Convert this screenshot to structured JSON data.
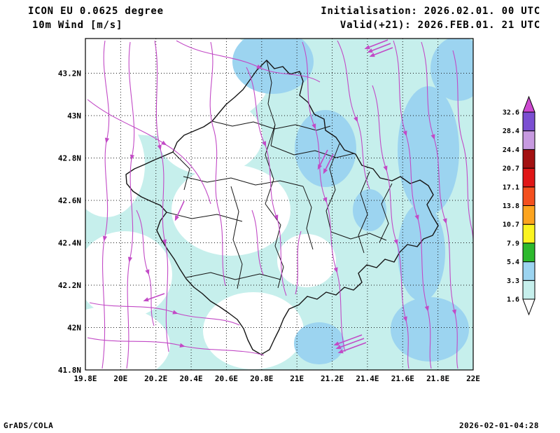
{
  "header": {
    "model": "ICON EU 0.0625 degree",
    "field": "10m Wind [m/s]",
    "initialisation": "Initialisation: 2026.02.01. 00 UTC",
    "valid": "Valid(+21): 2026.FEB.01. 21 UTC"
  },
  "footer": {
    "credit": "GrADS/COLA",
    "timestamp": "2026-02-01-04:28"
  },
  "chart_data": {
    "type": "heatmap",
    "title": "ICON EU 0.0625 degree - 10m Wind [m/s]",
    "projection": "latlon",
    "region_hint": "Kosovo and surroundings with wind streamlines",
    "lon_range": [
      19.8,
      22.0
    ],
    "lat_range": [
      41.8,
      43.3636
    ],
    "grid": "dotted",
    "lon_ticks": [
      {
        "v": 19.8,
        "label": "19.8E"
      },
      {
        "v": 20.0,
        "label": "20E"
      },
      {
        "v": 20.2,
        "label": "20.2E"
      },
      {
        "v": 20.4,
        "label": "20.4E"
      },
      {
        "v": 20.6,
        "label": "20.6E"
      },
      {
        "v": 20.8,
        "label": "20.8E"
      },
      {
        "v": 21.0,
        "label": "21E"
      },
      {
        "v": 21.2,
        "label": "21.2E"
      },
      {
        "v": 21.4,
        "label": "21.4E"
      },
      {
        "v": 21.6,
        "label": "21.6E"
      },
      {
        "v": 21.8,
        "label": "21.8E"
      },
      {
        "v": 22.0,
        "label": "22E"
      }
    ],
    "lat_ticks": [
      {
        "v": 41.8,
        "label": "41.8N"
      },
      {
        "v": 42.0,
        "label": "42N"
      },
      {
        "v": 42.2,
        "label": "42.2N"
      },
      {
        "v": 42.4,
        "label": "42.4N"
      },
      {
        "v": 42.6,
        "label": "42.6N"
      },
      {
        "v": 42.8,
        "label": "42.8N"
      },
      {
        "v": 43.0,
        "label": "43N"
      },
      {
        "v": 43.2,
        "label": "43.2N"
      }
    ],
    "colorbar": {
      "units": "m/s",
      "levels": [
        1.6,
        3.3,
        5.4,
        7.9,
        10.7,
        13.8,
        17.1,
        20.7,
        24.4,
        28.4,
        32.6
      ],
      "band_colors": [
        "#ffffff",
        "#c6efec",
        "#9cd4f0",
        "#2db92d",
        "#fbf420",
        "#fca41f",
        "#f4501e",
        "#e01717",
        "#a31111",
        "#c79ae0",
        "#7b4fd2",
        "#cd49d0"
      ]
    },
    "streamline_color": "#c24ac6",
    "shaded_field_summary": [
      {
        "band": "< 1.6 m/s",
        "color": "#ffffff",
        "areas": [
          "northwest quadrant",
          "west of Kosovo border",
          "central-west Kosovo",
          "southwest and bottom-left corner",
          "south-central patch"
        ]
      },
      {
        "band": "1.6 - 3.3 m/s",
        "color": "#c6efec",
        "areas": [
          "dominant background over most of the domain"
        ]
      },
      {
        "band": "3.3 - 5.4 m/s",
        "color": "#9cd4f0",
        "areas": [
          "north-central near 20.85E 43.25N",
          "central near 21.15E 42.85N",
          "eastern band along 21.6-21.9E",
          "northeast corner near 21.9E 43.2N",
          "southeast near 21.75E 42.0N",
          "south-central near 21.1E 41.95N"
        ]
      }
    ]
  }
}
